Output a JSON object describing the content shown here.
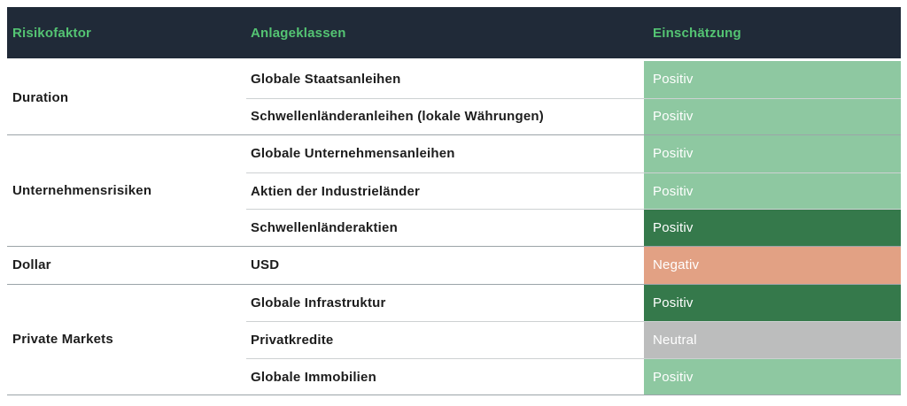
{
  "table": {
    "header": {
      "bg": "#202a38",
      "text_color": "#54c473",
      "columns": [
        {
          "label": "Risikofaktor"
        },
        {
          "label": "Anlageklassen"
        },
        {
          "label": "Einschätzung"
        }
      ]
    },
    "tone_colors": {
      "positive_light": "#8ec8a1",
      "positive_strong": "#35794b",
      "negative": "#e2a184",
      "neutral": "#bcbdbd"
    },
    "badge_text_color": "#ffffff",
    "groups": [
      {
        "risk_factor": "Duration",
        "rows": [
          {
            "asset_class": "Globale Staatsanleihen",
            "assessment": "Positiv",
            "tone": "positive_light"
          },
          {
            "asset_class": "Schwellenländeranleihen (lokale Währungen)",
            "assessment": "Positiv",
            "tone": "positive_light"
          }
        ]
      },
      {
        "risk_factor": "Unternehmensrisiken",
        "rows": [
          {
            "asset_class": "Globale Unternehmensanleihen",
            "assessment": "Positiv",
            "tone": "positive_light"
          },
          {
            "asset_class": "Aktien der Industrieländer",
            "assessment": "Positiv",
            "tone": "positive_light"
          },
          {
            "asset_class": "Schwellenländeraktien",
            "assessment": "Positiv",
            "tone": "positive_strong"
          }
        ]
      },
      {
        "risk_factor": "Dollar",
        "rows": [
          {
            "asset_class": "USD",
            "assessment": "Negativ",
            "tone": "negative"
          }
        ]
      },
      {
        "risk_factor": "Private Markets",
        "rows": [
          {
            "asset_class": "Globale Infrastruktur",
            "assessment": "Positiv",
            "tone": "positive_strong"
          },
          {
            "asset_class": "Privatkredite",
            "assessment": "Neutral",
            "tone": "neutral"
          },
          {
            "asset_class": "Globale Immobilien",
            "assessment": "Positiv",
            "tone": "positive_light"
          }
        ]
      }
    ]
  },
  "chart_data": {
    "type": "table",
    "columns": [
      "Risikofaktor",
      "Anlageklassen",
      "Einschätzung"
    ],
    "rows": [
      [
        "Duration",
        "Globale Staatsanleihen",
        "Positiv"
      ],
      [
        "Duration",
        "Schwellenländeranleihen (lokale Währungen)",
        "Positiv"
      ],
      [
        "Unternehmensrisiken",
        "Globale Unternehmensanleihen",
        "Positiv"
      ],
      [
        "Unternehmensrisiken",
        "Aktien der Industrieländer",
        "Positiv"
      ],
      [
        "Unternehmensrisiken",
        "Schwellenländeraktien",
        "Positiv"
      ],
      [
        "Dollar",
        "USD",
        "Negativ"
      ],
      [
        "Private Markets",
        "Globale Infrastruktur",
        "Positiv"
      ],
      [
        "Private Markets",
        "Privatkredite",
        "Neutral"
      ],
      [
        "Private Markets",
        "Globale Immobilien",
        "Positiv"
      ]
    ],
    "legend_tones": {
      "Positiv (light green)": "#8ec8a1",
      "Positiv (dark green)": "#35794b",
      "Negativ (salmon)": "#e2a184",
      "Neutral (gray)": "#bcbdbd"
    }
  }
}
